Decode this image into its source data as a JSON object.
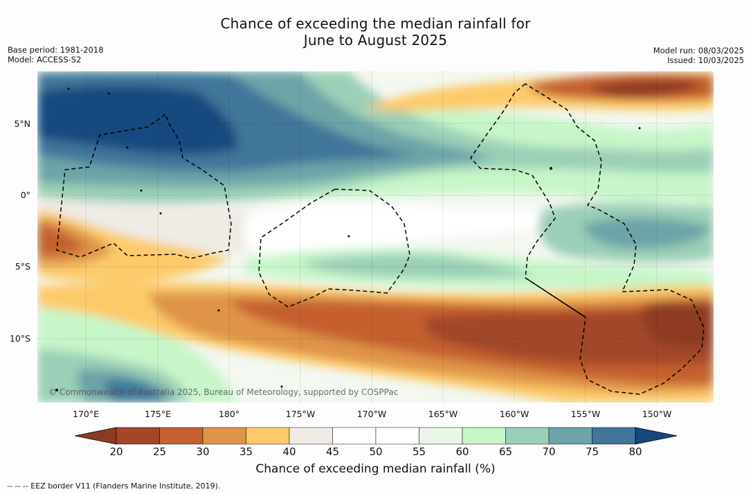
{
  "title": {
    "line1": "Chance of exceeding the median rainfall for",
    "line2": "June to August 2025"
  },
  "meta": {
    "base_period": "Base period: 1981-2018",
    "model": "Model: ACCESS-S2",
    "model_run": "Model run: 08/03/2025",
    "issued": "Issued: 10/03/2025"
  },
  "map": {
    "lat_labels": [
      "5°N",
      "0°",
      "5°S",
      "10°S"
    ],
    "lon_labels": [
      "170°E",
      "175°E",
      "180°",
      "175°W",
      "170°W",
      "165°W",
      "160°W",
      "155°W",
      "150°W"
    ],
    "credit": "© Commonwealth of Australia 2025, Bureau of Meteorology, supported by COSPPac"
  },
  "colorbar": {
    "ticks": [
      "20",
      "25",
      "30",
      "35",
      "40",
      "45",
      "50",
      "55",
      "60",
      "65",
      "70",
      "75",
      "80"
    ],
    "colors": [
      "#a3462a",
      "#c5612f",
      "#df9448",
      "#fdca6b",
      "#efebe5",
      "#ffffff",
      "#ffffff",
      "#e9f5e7",
      "#c7f6c9",
      "#9bcfb7",
      "#6ca4a8",
      "#41769a"
    ],
    "under_color": "#8e3a22",
    "over_color": "#14487f",
    "title": "Chance of exceeding median rainfall (%)"
  },
  "footnote": "--  --  -- EEZ border V11 (Flanders Marine Institute, 2019)."
}
